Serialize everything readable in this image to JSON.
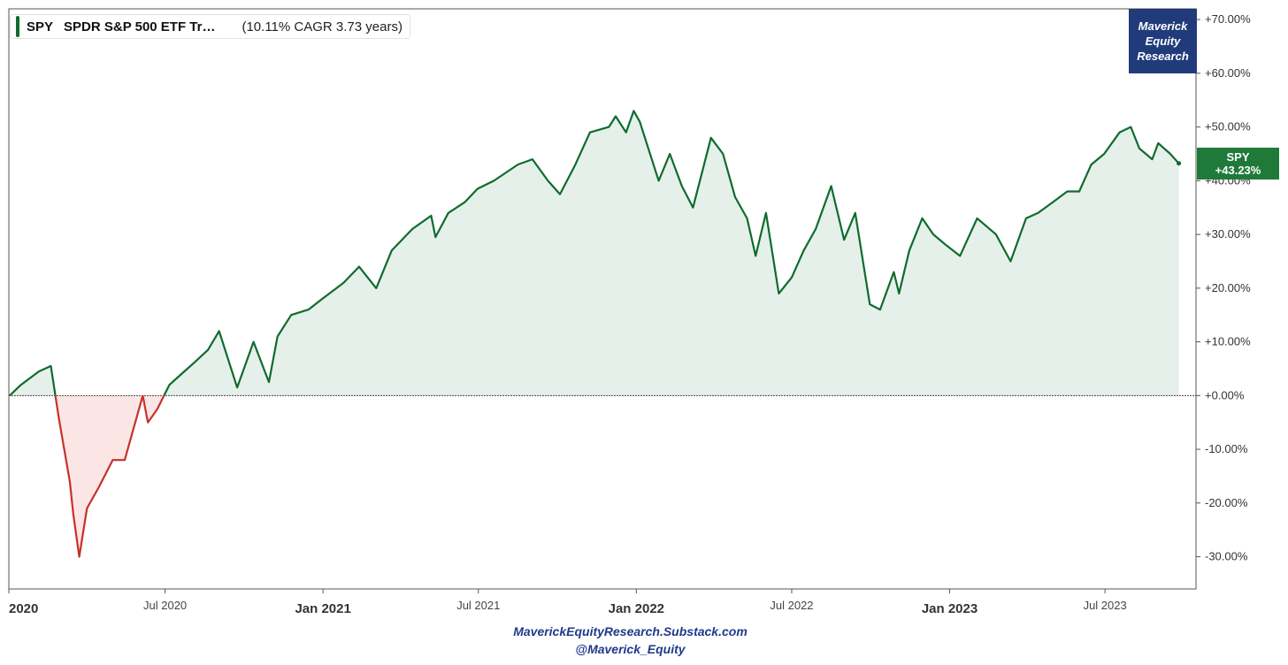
{
  "chart_data": {
    "type": "line",
    "series": [
      {
        "name": "SPY",
        "x": [
          "2020-01-02",
          "2020-01-15",
          "2020-02-05",
          "2020-02-19",
          "2020-02-28",
          "2020-03-12",
          "2020-03-16",
          "2020-03-23",
          "2020-04-01",
          "2020-04-15",
          "2020-05-01",
          "2020-05-15",
          "2020-06-05",
          "2020-06-11",
          "2020-06-22",
          "2020-07-06",
          "2020-07-20",
          "2020-08-03",
          "2020-08-20",
          "2020-09-02",
          "2020-09-23",
          "2020-10-12",
          "2020-10-30",
          "2020-11-09",
          "2020-11-25",
          "2020-12-15",
          "2020-12-31",
          "2021-01-25",
          "2021-02-12",
          "2021-03-04",
          "2021-03-22",
          "2021-04-15",
          "2021-05-07",
          "2021-05-12",
          "2021-05-27",
          "2021-06-15",
          "2021-06-30",
          "2021-07-19",
          "2021-08-16",
          "2021-09-02",
          "2021-09-20",
          "2021-10-04",
          "2021-10-22",
          "2021-11-08",
          "2021-11-30",
          "2021-12-08",
          "2021-12-20",
          "2021-12-29",
          "2022-01-05",
          "2022-01-27",
          "2022-02-09",
          "2022-02-23",
          "2022-03-08",
          "2022-03-29",
          "2022-04-12",
          "2022-04-26",
          "2022-05-10",
          "2022-05-20",
          "2022-06-01",
          "2022-06-16",
          "2022-07-01",
          "2022-07-15",
          "2022-07-29",
          "2022-08-16",
          "2022-08-31",
          "2022-09-13",
          "2022-09-30",
          "2022-10-12",
          "2022-10-28",
          "2022-11-03",
          "2022-11-15",
          "2022-11-30",
          "2022-12-13",
          "2022-12-28",
          "2023-01-13",
          "2023-02-02",
          "2023-02-24",
          "2023-03-13",
          "2023-03-31",
          "2023-04-14",
          "2023-05-01",
          "2023-05-18",
          "2023-06-01",
          "2023-06-15",
          "2023-06-30",
          "2023-07-18",
          "2023-07-31",
          "2023-08-10",
          "2023-08-25",
          "2023-09-01",
          "2023-09-15",
          "2023-09-25"
        ],
        "y": [
          0,
          2,
          4.5,
          5.5,
          -4,
          -16,
          -22,
          -30,
          -21,
          -17,
          -12,
          -12,
          0,
          -5,
          -2.5,
          2,
          4,
          6,
          8.5,
          12,
          1.5,
          10,
          2.5,
          11,
          15,
          16,
          18,
          21,
          24,
          20,
          27,
          31,
          33.5,
          29.5,
          34,
          36,
          38.5,
          40,
          43,
          44,
          40,
          37.5,
          43,
          49,
          50,
          52,
          49,
          53,
          51,
          40,
          45,
          39,
          35,
          48,
          45,
          37,
          33,
          26,
          34,
          19,
          22,
          27,
          31,
          39,
          29,
          34,
          17,
          16,
          23,
          19,
          27,
          33,
          30,
          28,
          26,
          33,
          30,
          25,
          33,
          34,
          36,
          38,
          38,
          43,
          45,
          49,
          50,
          46,
          44,
          47,
          45,
          43.23
        ]
      }
    ],
    "ylim": [
      -36,
      72
    ],
    "yticks": [
      "+70.00%",
      "+60.00%",
      "+50.00%",
      "+40.00%",
      "+30.00%",
      "+20.00%",
      "+10.00%",
      "+0.00%",
      "-10.00%",
      "-20.00%",
      "-30.00%"
    ],
    "xticks": [
      {
        "label": "2020",
        "date": "2020-01-01",
        "major": true
      },
      {
        "label": "Jul 2020",
        "date": "2020-07-01",
        "major": false
      },
      {
        "label": "Jan 2021",
        "date": "2021-01-01",
        "major": true
      },
      {
        "label": "Jul 2021",
        "date": "2021-07-01",
        "major": false
      },
      {
        "label": "Jan 2022",
        "date": "2022-01-01",
        "major": true
      },
      {
        "label": "Jul 2022",
        "date": "2022-07-01",
        "major": false
      },
      {
        "label": "Jan 2023",
        "date": "2023-01-01",
        "major": true
      },
      {
        "label": "Jul 2023",
        "date": "2023-07-01",
        "major": false
      }
    ],
    "xlim": [
      "2020-01-01",
      "2023-10-15"
    ],
    "colors": {
      "positive": "#0f6b2e",
      "negative": "#c8302a",
      "positive_fill": "#e6f0ea",
      "negative_fill": "#fbe6e5"
    }
  },
  "legend": {
    "ticker": "SPY",
    "name": "SPDR S&P 500 ETF Tr…",
    "stat": "(10.11% CAGR 3.73 years)"
  },
  "brand": {
    "line1": "Maverick",
    "line2": "Equity",
    "line3": "Research"
  },
  "end_badge": {
    "ticker": "SPY",
    "value": "+43.23%"
  },
  "footer": {
    "site": "MaverickEquityResearch.Substack.com",
    "handle": "@Maverick_Equity"
  }
}
